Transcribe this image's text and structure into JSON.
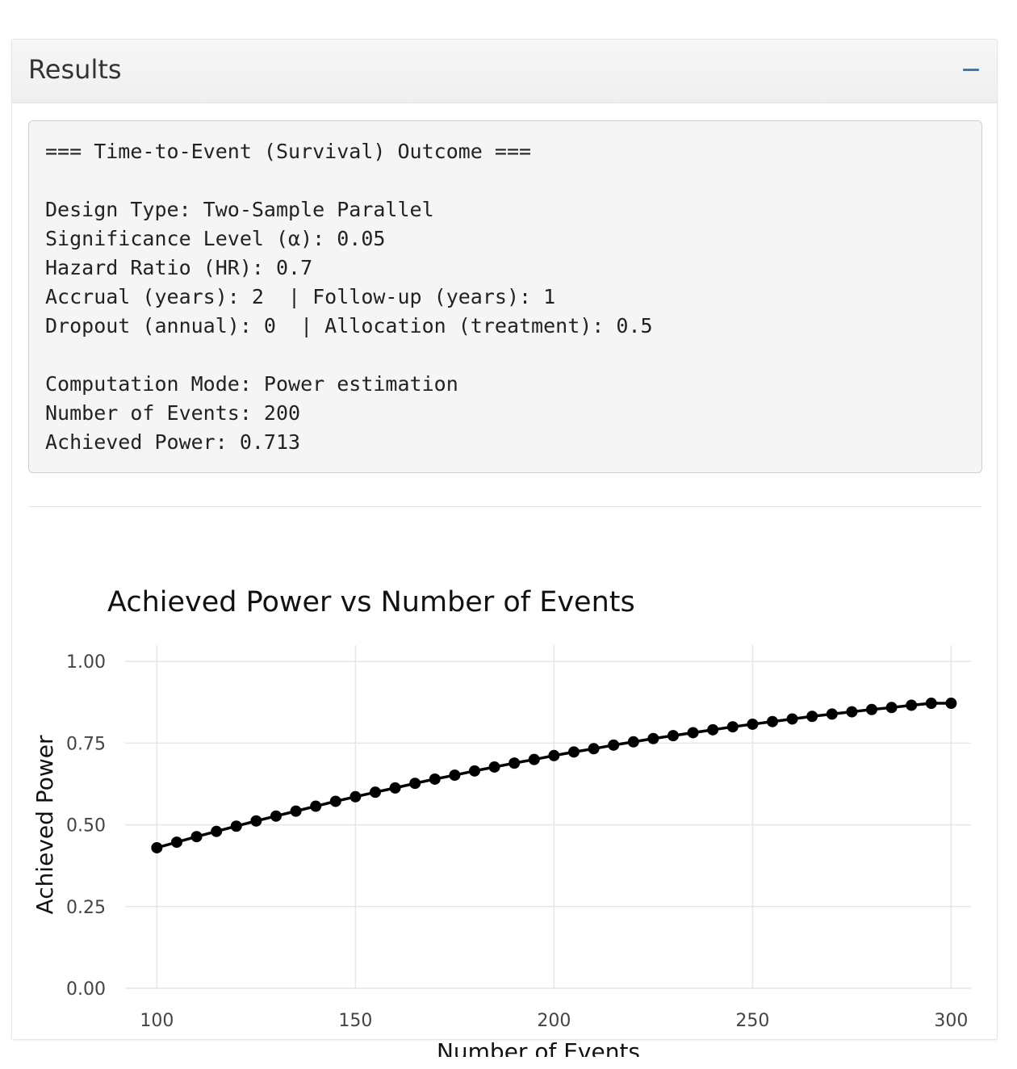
{
  "panel": {
    "title": "Results",
    "collapse_icon": "minus-icon"
  },
  "output_lines": [
    "=== Time-to-Event (Survival) Outcome ===",
    "",
    "Design Type: Two-Sample Parallel",
    "Significance Level (α): 0.05",
    "Hazard Ratio (HR): 0.7",
    "Accrual (years): 2  | Follow-up (years): 1",
    "Dropout (annual): 0  | Allocation (treatment): 0.5",
    "",
    "Computation Mode: Power estimation",
    "Number of Events: 200",
    "Achieved Power: 0.713"
  ],
  "chart_data": {
    "type": "line",
    "title": "Achieved Power vs Number of Events",
    "xlabel": "Number of Events",
    "ylabel": "Achieved Power",
    "xlim": [
      92,
      305
    ],
    "ylim": [
      0,
      1.05
    ],
    "xticks": [
      100,
      150,
      200,
      250,
      300
    ],
    "yticks": [
      "0.00",
      "0.25",
      "0.50",
      "0.75",
      "1.00"
    ],
    "grid": true,
    "legend": "none",
    "line_color": "#000000",
    "x": [
      100,
      105,
      110,
      115,
      120,
      125,
      130,
      135,
      140,
      145,
      150,
      155,
      160,
      165,
      170,
      175,
      180,
      185,
      190,
      195,
      200,
      205,
      210,
      215,
      220,
      225,
      230,
      235,
      240,
      245,
      250,
      255,
      260,
      265,
      270,
      275,
      280,
      285,
      290,
      295,
      300
    ],
    "values": [
      0.43,
      0.447,
      0.464,
      0.48,
      0.496,
      0.512,
      0.527,
      0.542,
      0.557,
      0.572,
      0.586,
      0.6,
      0.613,
      0.627,
      0.64,
      0.652,
      0.665,
      0.677,
      0.689,
      0.7,
      0.712,
      0.723,
      0.733,
      0.744,
      0.754,
      0.764,
      0.773,
      0.782,
      0.791,
      0.8,
      0.808,
      0.816,
      0.824,
      0.832,
      0.839,
      0.846,
      0.853,
      0.859,
      0.866,
      0.872,
      0.872
    ]
  }
}
